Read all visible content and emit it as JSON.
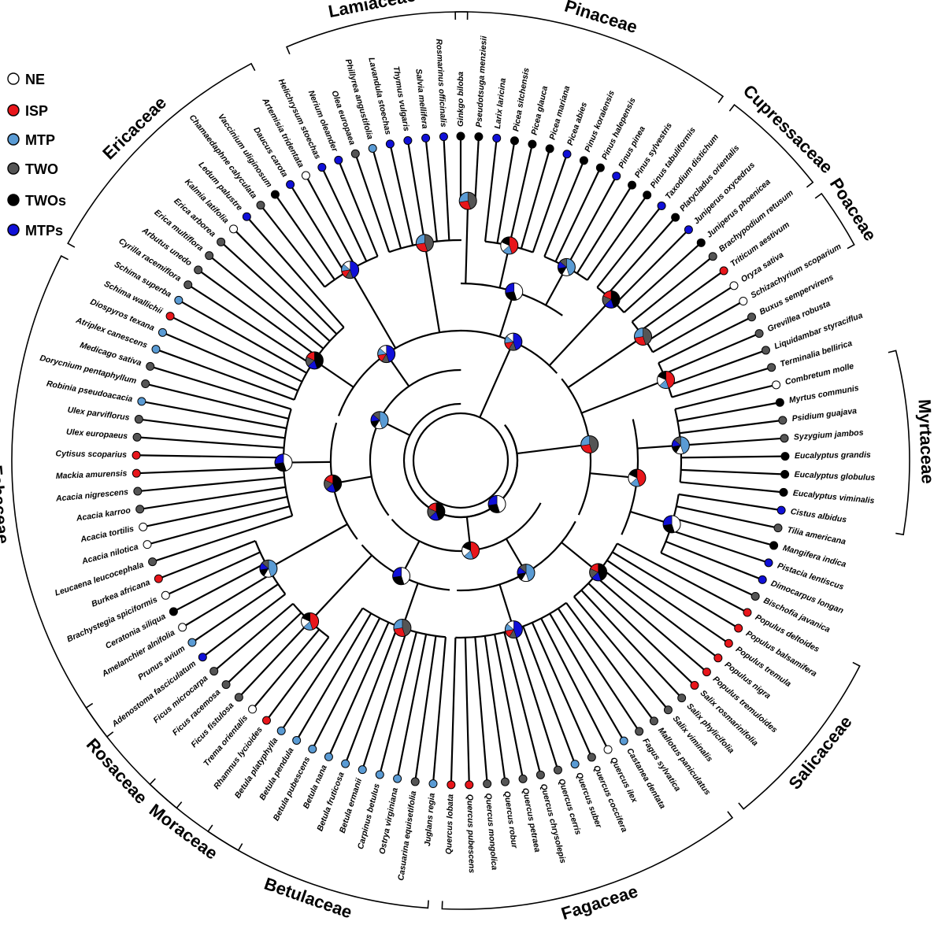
{
  "legend": [
    {
      "key": "NE",
      "label": "NE",
      "color": "#ffffff"
    },
    {
      "key": "ISP",
      "label": "ISP",
      "color": "#e8161b"
    },
    {
      "key": "MTP",
      "label": "MTP",
      "color": "#5a9bd4"
    },
    {
      "key": "TWO",
      "label": "TWO",
      "color": "#555555"
    },
    {
      "key": "TWOs",
      "label": "TWOs",
      "color": "#000000"
    },
    {
      "key": "MTPs",
      "label": "MTPs",
      "color": "#1010d8"
    }
  ],
  "families": [
    {
      "name": "Myrtaceae"
    },
    {
      "name": "Poaceae"
    },
    {
      "name": "Cupressaceae"
    },
    {
      "name": "Pinaceae"
    },
    {
      "name": "Lamiaceae"
    },
    {
      "name": "Ericaceae"
    },
    {
      "name": "Fabaceae"
    },
    {
      "name": "Rosaceae"
    },
    {
      "name": "Moraceae"
    },
    {
      "name": "Betulaceae"
    },
    {
      "name": "Fagaceae"
    },
    {
      "name": "Salicaceae"
    }
  ],
  "species": [
    {
      "name": "Ginkgo biloba",
      "state": "TWOs"
    },
    {
      "name": "Pseudotsuga menziesii",
      "state": "TWOs"
    },
    {
      "name": "Larix laricina",
      "state": "MTPs"
    },
    {
      "name": "Picea sitchensis",
      "state": "TWOs"
    },
    {
      "name": "Picea glauca",
      "state": "TWOs"
    },
    {
      "name": "Picea mariana",
      "state": "TWOs"
    },
    {
      "name": "Picea abies",
      "state": "MTPs"
    },
    {
      "name": "Pinus koraiensis",
      "state": "TWOs"
    },
    {
      "name": "Pinus halepensis",
      "state": "TWOs"
    },
    {
      "name": "Pinus pinea",
      "state": "MTPs"
    },
    {
      "name": "Pinus sylvestris",
      "state": "TWOs"
    },
    {
      "name": "Pinus tabuliformis",
      "state": "TWOs"
    },
    {
      "name": "Taxodium distichum",
      "state": "MTPs"
    },
    {
      "name": "Platycladus orientalis",
      "state": "TWOs"
    },
    {
      "name": "Juniperus oxycedrus",
      "state": "MTPs"
    },
    {
      "name": "Juniperus phoenicea",
      "state": "TWOs"
    },
    {
      "name": "Brachypodium retusum",
      "state": "TWO"
    },
    {
      "name": "Triticum aestivum",
      "state": "ISP"
    },
    {
      "name": "Oryza sativa",
      "state": "NE"
    },
    {
      "name": "Schizachyrium scoparium",
      "state": "NE"
    },
    {
      "name": "Buxus sempervirens",
      "state": "TWO"
    },
    {
      "name": "Grevillea robusta",
      "state": "TWO"
    },
    {
      "name": "Liquidambar styraciflua",
      "state": "TWO"
    },
    {
      "name": "Terminalia bellirica",
      "state": "TWO"
    },
    {
      "name": "Combretum molle",
      "state": "NE"
    },
    {
      "name": "Myrtus communis",
      "state": "TWOs"
    },
    {
      "name": "Psidium guajava",
      "state": "TWO"
    },
    {
      "name": "Syzygium jambos",
      "state": "TWO"
    },
    {
      "name": "Eucalyptus grandis",
      "state": "TWOs"
    },
    {
      "name": "Eucalyptus globulus",
      "state": "TWOs"
    },
    {
      "name": "Eucalyptus viminalis",
      "state": "TWOs"
    },
    {
      "name": "Cistus albidus",
      "state": "MTPs"
    },
    {
      "name": "Tilia americana",
      "state": "TWO"
    },
    {
      "name": "Mangifera indica",
      "state": "TWOs"
    },
    {
      "name": "Pistacia lentiscus",
      "state": "MTPs"
    },
    {
      "name": "Dimocarpus longan",
      "state": "MTPs"
    },
    {
      "name": "Bischofia javanica",
      "state": "TWO"
    },
    {
      "name": "Populus deltoides",
      "state": "ISP"
    },
    {
      "name": "Populus balsamifera",
      "state": "ISP"
    },
    {
      "name": "Populus tremula",
      "state": "ISP"
    },
    {
      "name": "Populus nigra",
      "state": "ISP"
    },
    {
      "name": "Populus tremuloides",
      "state": "ISP"
    },
    {
      "name": "Salix rosmarinifolia",
      "state": "ISP"
    },
    {
      "name": "Salix phylicifolia",
      "state": "TWO"
    },
    {
      "name": "Salix viminalis",
      "state": "TWO"
    },
    {
      "name": "Mallotus paniculatus",
      "state": "TWO"
    },
    {
      "name": "Fagus sylvatica",
      "state": "TWO"
    },
    {
      "name": "Castanea dentata",
      "state": "MTP"
    },
    {
      "name": "Quercus ilex",
      "state": "NE"
    },
    {
      "name": "Quercus coccifera",
      "state": "TWO"
    },
    {
      "name": "Quercus suber",
      "state": "MTP"
    },
    {
      "name": "Quercus cerris",
      "state": "TWO"
    },
    {
      "name": "Quercus chrysolepis",
      "state": "TWO"
    },
    {
      "name": "Quercus petraea",
      "state": "TWO"
    },
    {
      "name": "Quercus robur",
      "state": "TWO"
    },
    {
      "name": "Quercus mongolica",
      "state": "TWO"
    },
    {
      "name": "Quercus pubescens",
      "state": "ISP"
    },
    {
      "name": "Quercus lobata",
      "state": "ISP"
    },
    {
      "name": "Juglans regia",
      "state": "MTP"
    },
    {
      "name": "Casuarina equisetifolia",
      "state": "TWO"
    },
    {
      "name": "Ostrya virginiana",
      "state": "MTP"
    },
    {
      "name": "Carpinus betulus",
      "state": "MTP"
    },
    {
      "name": "Betula ermanii",
      "state": "MTP"
    },
    {
      "name": "Betula fruticosa",
      "state": "MTP"
    },
    {
      "name": "Betula nana",
      "state": "MTP"
    },
    {
      "name": "Betula pubescens",
      "state": "MTP"
    },
    {
      "name": "Betula pendula",
      "state": "MTP"
    },
    {
      "name": "Betula platyphylla",
      "state": "MTP"
    },
    {
      "name": "Rhamnus lycioides",
      "state": "ISP"
    },
    {
      "name": "Trema orientalis",
      "state": "NE"
    },
    {
      "name": "Ficus fistulosa",
      "state": "TWO"
    },
    {
      "name": "Ficus racemosa",
      "state": "TWO"
    },
    {
      "name": "Ficus microcarpa",
      "state": "TWO"
    },
    {
      "name": "Adenostoma fasciculatum",
      "state": "MTPs"
    },
    {
      "name": "Prunus avium",
      "state": "MTP"
    },
    {
      "name": "Amelanchier alnifolia",
      "state": "NE"
    },
    {
      "name": "Ceratonia siliqua",
      "state": "TWOs"
    },
    {
      "name": "Brachystegia spiciformis",
      "state": "NE"
    },
    {
      "name": "Burkea africana",
      "state": "ISP"
    },
    {
      "name": "Leucaena leucocephala",
      "state": "TWO"
    },
    {
      "name": "Acacia nilotica",
      "state": "NE"
    },
    {
      "name": "Acacia tortilis",
      "state": "NE"
    },
    {
      "name": "Acacia karroo",
      "state": "TWO"
    },
    {
      "name": "Acacia nigrescens",
      "state": "TWO"
    },
    {
      "name": "Mackia amurensis",
      "state": "ISP"
    },
    {
      "name": "Cytisus scoparius",
      "state": "ISP"
    },
    {
      "name": "Ulex europaeus",
      "state": "TWO"
    },
    {
      "name": "Ulex parviflorus",
      "state": "TWO"
    },
    {
      "name": "Robinia pseudoacacia",
      "state": "MTP"
    },
    {
      "name": "Dorycnium pentaphyllum",
      "state": "TWO"
    },
    {
      "name": "Medicago sativa",
      "state": "TWO"
    },
    {
      "name": "Atriplex canescens",
      "state": "MTP"
    },
    {
      "name": "Diospyros texana",
      "state": "MTP"
    },
    {
      "name": "Schima wallichii",
      "state": "ISP"
    },
    {
      "name": "Schima superba",
      "state": "MTP"
    },
    {
      "name": "Cyrilla racemiflora",
      "state": "TWO"
    },
    {
      "name": "Arbutus unedo",
      "state": "TWO"
    },
    {
      "name": "Erica multiflora",
      "state": "TWO"
    },
    {
      "name": "Erica arborea",
      "state": "TWO"
    },
    {
      "name": "Kalmia latifolia",
      "state": "NE"
    },
    {
      "name": "Ledum palustre",
      "state": "MTPs"
    },
    {
      "name": "Chamaedaphne calyculata",
      "state": "TWO"
    },
    {
      "name": "Vaccinium uliginosum",
      "state": "TWOs"
    },
    {
      "name": "Daucus carota",
      "state": "MTPs"
    },
    {
      "name": "Artemisia tridentata",
      "state": "NE"
    },
    {
      "name": "Helichrysum stoechas",
      "state": "MTPs"
    },
    {
      "name": "Nerium oleander",
      "state": "MTPs"
    },
    {
      "name": "Olea europaea",
      "state": "TWO"
    },
    {
      "name": "Phillyrea angustifolia",
      "state": "MTP"
    },
    {
      "name": "Lavandula stoechas",
      "state": "MTPs"
    },
    {
      "name": "Thymus vulgaris",
      "state": "MTPs"
    },
    {
      "name": "Salvia mellifera",
      "state": "MTPs"
    },
    {
      "name": "Rosmarinus officinalis",
      "state": "MTPs"
    }
  ]
}
